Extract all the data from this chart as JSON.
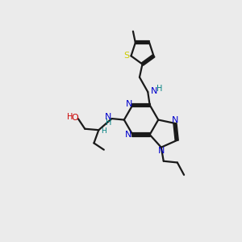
{
  "bg_color": "#ebebeb",
  "bond_color": "#1a1a1a",
  "n_color": "#0000cc",
  "s_color": "#cccc00",
  "o_color": "#cc0000",
  "h_color": "#008080",
  "lw": 1.6,
  "figsize": [
    3.0,
    3.0
  ],
  "dpi": 100,
  "xlim": [
    0,
    10
  ],
  "ylim": [
    0,
    10
  ]
}
